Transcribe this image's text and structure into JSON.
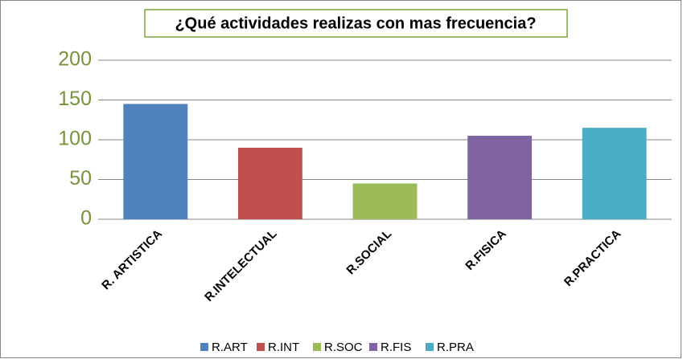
{
  "chart_data": {
    "type": "bar",
    "title": "¿Qué actividades realizas con mas frecuencia?",
    "categories": [
      "R. ARTISTICA",
      "R.INTELECTUAL",
      "R.SOCIAL",
      "R.FISICA",
      "R.PRACTICA"
    ],
    "values": [
      145,
      90,
      45,
      105,
      115
    ],
    "colors": [
      "#4f81bd",
      "#c0504d",
      "#9bbb59",
      "#8064a2",
      "#4bacc6"
    ],
    "legend": [
      "R.ART",
      "R.INT",
      "R.SOC",
      "R.FIS",
      "R.PRA"
    ],
    "ylim": [
      0,
      200
    ],
    "yticks": [
      0,
      50,
      100,
      150,
      200
    ],
    "grid": true
  }
}
